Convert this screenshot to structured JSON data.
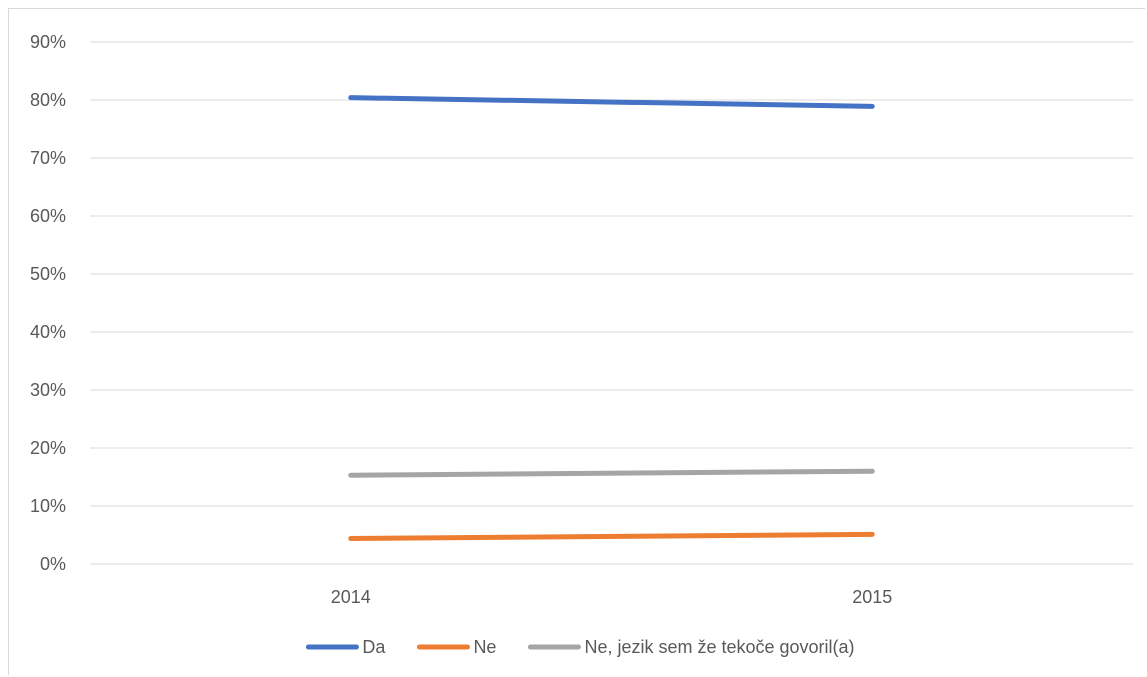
{
  "chart_data": {
    "type": "line",
    "title": "",
    "xlabel": "",
    "ylabel": "",
    "categories": [
      "2014",
      "2015"
    ],
    "ylim": [
      0,
      90
    ],
    "yticks": [
      0,
      10,
      20,
      30,
      40,
      50,
      60,
      70,
      80,
      90
    ],
    "ytick_suffix": "%",
    "grid": true,
    "legend_position": "bottom",
    "series": [
      {
        "name": "Da",
        "values": [
          80.4,
          78.9
        ],
        "color": "#4472c4"
      },
      {
        "name": "Ne",
        "values": [
          4.4,
          5.1
        ],
        "color": "#ed7d31"
      },
      {
        "name": "Ne, jezik sem že tekoče govoril(a)",
        "values": [
          15.3,
          16.0
        ],
        "color": "#a5a5a5"
      }
    ]
  }
}
